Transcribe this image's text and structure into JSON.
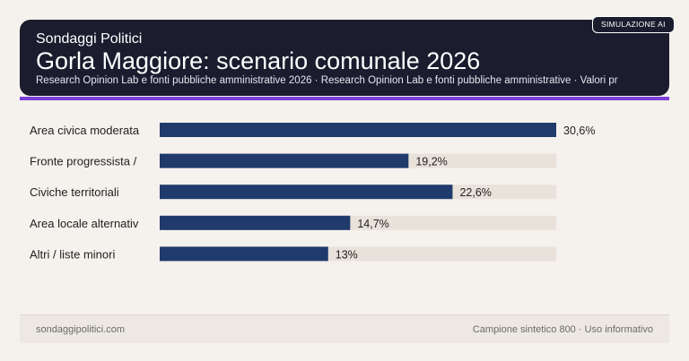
{
  "header": {
    "kicker": "Sondaggi Politici",
    "title": "Gorla Maggiore: scenario comunale 2026",
    "subtitle": "Research Opinion Lab e fonti pubbliche amministrative 2026 · Research Opinion Lab e fonti pubbliche amministrative · Valori pr",
    "badge": "SIMULAZIONE AI"
  },
  "colors": {
    "header_bg": "#1b1c2e",
    "accent": "#7a3fd9",
    "bar": "#1f3a6b",
    "track": "#e8e2da",
    "background": "#f5f1ec"
  },
  "chart_data": {
    "type": "bar",
    "orientation": "horizontal",
    "categories": [
      "Area civica moderata",
      "Fronte progressista /",
      "Civiche territoriali",
      "Area locale alternativ",
      "Altri / liste minori"
    ],
    "values": [
      30.6,
      19.2,
      22.6,
      14.7,
      13
    ],
    "value_labels": [
      "30,6%",
      "19,2%",
      "22,6%",
      "14,7%",
      "13%"
    ],
    "xlim": [
      0,
      30.6
    ],
    "grid": false
  },
  "footer": {
    "left": "sondaggipolitici.com",
    "right": "Campione sintetico 800 · Uso informativo"
  }
}
